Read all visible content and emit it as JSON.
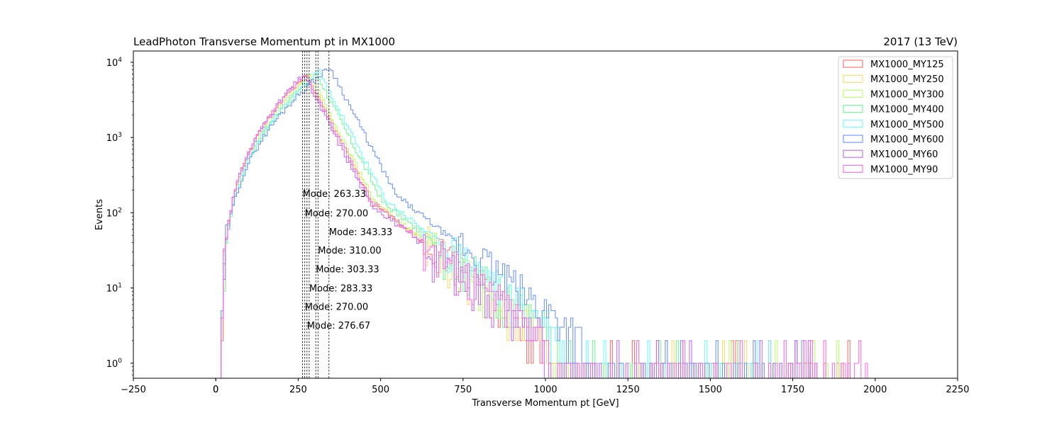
{
  "chart_data": {
    "type": "histogram-step",
    "title": "LeadPhoton Transverse Momentum pt in MX1000",
    "right_title": "2017 (13 TeV)",
    "xlabel": "Transverse Momentum pt [GeV]",
    "ylabel": "Events",
    "xlim": [
      -250,
      2250
    ],
    "ylim_log10": [
      -0.2,
      4.15
    ],
    "xticks": [
      -250,
      0,
      250,
      500,
      750,
      1000,
      1250,
      1500,
      1750,
      2000,
      2250
    ],
    "xtick_labels": [
      "−250",
      "0",
      "250",
      "500",
      "750",
      "1000",
      "1250",
      "1500",
      "1750",
      "2000",
      "2250"
    ],
    "extra_xtick": {
      "value": 0,
      "label": "0"
    },
    "yticks": [
      {
        "base": "10",
        "exp": "0",
        "value": 1
      },
      {
        "base": "10",
        "exp": "1",
        "value": 10
      },
      {
        "base": "10",
        "exp": "2",
        "value": 100
      },
      {
        "base": "10",
        "exp": "3",
        "value": 1000
      },
      {
        "base": "10",
        "exp": "4",
        "value": 10000
      }
    ],
    "bin_width": 6.67,
    "x_start": 16,
    "legend_position": "top-right",
    "series": [
      {
        "name": "MX1000_MY125",
        "color": "#ff6a6a",
        "peak": 270.0,
        "peak_value": 7000,
        "x_end": 1960,
        "seed": 3
      },
      {
        "name": "MX1000_MY250",
        "color": "#ffd86a",
        "peak": 276.67,
        "peak_value": 6800,
        "x_end": 1780,
        "seed": 7
      },
      {
        "name": "MX1000_MY300",
        "color": "#b8ff6a",
        "peak": 283.33,
        "peak_value": 6600,
        "x_end": 1900,
        "seed": 11
      },
      {
        "name": "MX1000_MY400",
        "color": "#6aff8e",
        "peak": 303.33,
        "peak_value": 6900,
        "x_end": 1780,
        "seed": 17
      },
      {
        "name": "MX1000_MY500",
        "color": "#6afcff",
        "peak": 310.0,
        "peak_value": 7600,
        "x_end": 1760,
        "seed": 23
      },
      {
        "name": "MX1000_MY600",
        "color": "#6a92ff",
        "peak": 343.33,
        "peak_value": 8600,
        "x_end": 1860,
        "seed": 29
      },
      {
        "name": "MX1000_MY60",
        "color": "#c06aff",
        "peak": 263.33,
        "peak_value": 6800,
        "x_end": 1800,
        "seed": 31
      },
      {
        "name": "MX1000_MY90",
        "color": "#ff6ae6",
        "peak": 270.0,
        "peak_value": 7000,
        "x_end": 2000,
        "seed": 37
      }
    ],
    "mode_lines": [
      263.33,
      270.0,
      276.67,
      283.33,
      303.33,
      310.0,
      343.33
    ],
    "mode_annotations": [
      {
        "text": "Mode: 263.33",
        "x": 263.33,
        "y": 180
      },
      {
        "text": "Mode: 270.00",
        "x": 270.0,
        "y": 100
      },
      {
        "text": "Mode: 343.33",
        "x": 343.33,
        "y": 56
      },
      {
        "text": "Mode: 310.00",
        "x": 310.0,
        "y": 32
      },
      {
        "text": "Mode: 303.33",
        "x": 303.33,
        "y": 18
      },
      {
        "text": "Mode: 283.33",
        "x": 283.33,
        "y": 10
      },
      {
        "text": "Mode: 270.00",
        "x": 270.0,
        "y": 5.7
      },
      {
        "text": "Mode: 276.67",
        "x": 276.67,
        "y": 3.2
      }
    ]
  }
}
